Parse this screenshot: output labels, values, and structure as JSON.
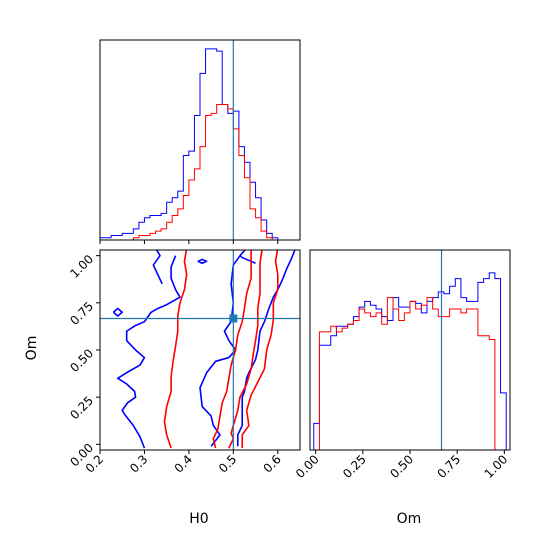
{
  "chart_data": {
    "type": "corner",
    "params": [
      "H0",
      "Om"
    ],
    "truth": {
      "H0": 0.5,
      "Om": 0.667
    },
    "truth_color": "#1f77b4",
    "series": [
      {
        "color": "#0000ff"
      },
      {
        "color": "#ff0000"
      }
    ],
    "axes": {
      "H0": {
        "xlim": [
          0.2,
          0.65
        ],
        "ticks": [
          0.2,
          0.3,
          0.4,
          0.5,
          0.6
        ],
        "tick_labels": [
          "0.2",
          "0.3",
          "0.4",
          "0.5",
          "0.6"
        ],
        "xlabel": "H0"
      },
      "Om": {
        "lim": [
          -0.03,
          1.03
        ],
        "ticks": [
          0.0,
          0.25,
          0.5,
          0.75,
          1.0
        ],
        "tick_labels": [
          "0.00",
          "0.25",
          "0.50",
          "0.75",
          "1.00"
        ],
        "xlabel": "Om",
        "ylabel": "Om"
      }
    },
    "hist_H0": {
      "edges": [
        0.2,
        0.2125,
        0.225,
        0.2375,
        0.25,
        0.2625,
        0.275,
        0.2875,
        0.3,
        0.3125,
        0.325,
        0.3375,
        0.35,
        0.3625,
        0.375,
        0.3875,
        0.4,
        0.4125,
        0.425,
        0.4375,
        0.45,
        0.4625,
        0.475,
        0.4875,
        0.5,
        0.5125,
        0.525,
        0.5375,
        0.55,
        0.5625,
        0.575,
        0.5875,
        0.6
      ],
      "blue": [
        0.01,
        0.01,
        0.02,
        0.02,
        0.03,
        0.03,
        0.05,
        0.08,
        0.1,
        0.11,
        0.11,
        0.12,
        0.17,
        0.19,
        0.22,
        0.38,
        0.4,
        0.56,
        0.75,
        0.86,
        0.86,
        0.85,
        0.61,
        0.57,
        0.58,
        0.42,
        0.35,
        0.26,
        0.19,
        0.09,
        0.03,
        0.01
      ],
      "red": [
        0.0,
        0.0,
        0.0,
        0.0,
        0.0,
        0.0,
        0.01,
        0.02,
        0.02,
        0.03,
        0.04,
        0.05,
        0.08,
        0.11,
        0.14,
        0.2,
        0.27,
        0.32,
        0.42,
        0.56,
        0.57,
        0.61,
        0.61,
        0.59,
        0.5,
        0.38,
        0.28,
        0.14,
        0.1,
        0.04,
        0.01,
        0.0
      ]
    },
    "hist_Om": {
      "edges": [
        -0.01,
        0.02,
        0.05,
        0.08,
        0.11,
        0.14,
        0.17,
        0.2,
        0.23,
        0.26,
        0.29,
        0.32,
        0.35,
        0.38,
        0.41,
        0.44,
        0.47,
        0.5,
        0.53,
        0.56,
        0.59,
        0.62,
        0.65,
        0.68,
        0.71,
        0.74,
        0.77,
        0.8,
        0.83,
        0.86,
        0.89,
        0.92,
        0.95,
        0.98,
        1.01
      ],
      "blue": [
        0.14,
        0.55,
        0.55,
        0.6,
        0.65,
        0.65,
        0.66,
        0.7,
        0.75,
        0.78,
        0.76,
        0.74,
        0.7,
        0.68,
        0.8,
        0.75,
        0.75,
        0.78,
        0.77,
        0.72,
        0.78,
        0.8,
        0.83,
        0.82,
        0.86,
        0.9,
        0.8,
        0.78,
        0.78,
        0.88,
        0.9,
        0.93,
        0.9,
        0.3
      ],
      "red": [
        0.0,
        0.62,
        0.62,
        0.65,
        0.62,
        0.64,
        0.66,
        0.68,
        0.74,
        0.72,
        0.7,
        0.72,
        0.66,
        0.8,
        0.74,
        0.68,
        0.72,
        0.78,
        0.74,
        0.76,
        0.8,
        0.74,
        0.7,
        0.7,
        0.74,
        0.74,
        0.72,
        0.74,
        0.74,
        0.6,
        0.6,
        0.58,
        0.0,
        0.0
      ]
    },
    "contours": [
      {
        "series": 0,
        "points": [
          [
            0.3,
            -0.02
          ],
          [
            0.29,
            0.04
          ],
          [
            0.275,
            0.1
          ],
          [
            0.255,
            0.16
          ],
          [
            0.25,
            0.18
          ],
          [
            0.262,
            0.22
          ],
          [
            0.28,
            0.25
          ],
          [
            0.278,
            0.28
          ],
          [
            0.26,
            0.32
          ],
          [
            0.24,
            0.35
          ],
          [
            0.26,
            0.38
          ],
          [
            0.29,
            0.42
          ],
          [
            0.3,
            0.46
          ],
          [
            0.28,
            0.5
          ],
          [
            0.26,
            0.55
          ],
          [
            0.26,
            0.6
          ],
          [
            0.28,
            0.63
          ],
          [
            0.3,
            0.65
          ],
          [
            0.315,
            0.7
          ],
          [
            0.33,
            0.72
          ],
          [
            0.35,
            0.74
          ],
          [
            0.365,
            0.76
          ],
          [
            0.38,
            0.78
          ],
          [
            0.37,
            0.82
          ],
          [
            0.36,
            0.88
          ],
          [
            0.36,
            0.94
          ],
          [
            0.37,
            1.0
          ]
        ]
      },
      {
        "series": 0,
        "points": [
          [
            0.34,
            0.85
          ],
          [
            0.33,
            0.9
          ],
          [
            0.32,
            0.95
          ],
          [
            0.335,
            1.0
          ],
          [
            0.325,
            1.04
          ]
        ]
      },
      {
        "series": 0,
        "points": [
          [
            0.23,
            0.7
          ],
          [
            0.24,
            0.68
          ],
          [
            0.25,
            0.7
          ],
          [
            0.24,
            0.72
          ],
          [
            0.23,
            0.7
          ]
        ]
      },
      {
        "series": 0,
        "points": [
          [
            0.45,
            -0.01
          ],
          [
            0.47,
            0.05
          ],
          [
            0.455,
            0.1
          ],
          [
            0.45,
            0.15
          ],
          [
            0.43,
            0.2
          ],
          [
            0.425,
            0.3
          ],
          [
            0.44,
            0.38
          ],
          [
            0.46,
            0.44
          ],
          [
            0.49,
            0.46
          ],
          [
            0.505,
            0.5
          ],
          [
            0.49,
            0.55
          ],
          [
            0.48,
            0.6
          ],
          [
            0.495,
            0.65
          ],
          [
            0.5,
            0.75
          ],
          [
            0.495,
            0.85
          ],
          [
            0.5,
            0.95
          ],
          [
            0.515,
            1.0
          ],
          [
            0.53,
            1.04
          ]
        ]
      },
      {
        "series": 0,
        "points": [
          [
            0.51,
            -0.01
          ],
          [
            0.51,
            0.05
          ],
          [
            0.52,
            0.1
          ],
          [
            0.52,
            0.2
          ],
          [
            0.52,
            0.25
          ],
          [
            0.525,
            0.28
          ],
          [
            0.53,
            0.35
          ],
          [
            0.535,
            0.38
          ],
          [
            0.55,
            0.45
          ],
          [
            0.555,
            0.5
          ],
          [
            0.56,
            0.6
          ],
          [
            0.57,
            0.65
          ],
          [
            0.58,
            0.72
          ],
          [
            0.59,
            0.78
          ],
          [
            0.6,
            0.82
          ],
          [
            0.61,
            0.87
          ],
          [
            0.62,
            0.93
          ],
          [
            0.63,
            0.98
          ],
          [
            0.64,
            1.04
          ]
        ]
      },
      {
        "series": 0,
        "points": [
          [
            0.42,
            0.97
          ],
          [
            0.43,
            0.96
          ],
          [
            0.44,
            0.97
          ],
          [
            0.43,
            0.98
          ],
          [
            0.42,
            0.97
          ]
        ]
      },
      {
        "series": 0,
        "points": [
          [
            0.55,
            0.96
          ],
          [
            0.54,
            0.97
          ],
          [
            0.53,
            0.98
          ],
          [
            0.52,
            0.99
          ],
          [
            0.515,
            1.0
          ]
        ]
      },
      {
        "series": 1,
        "points": [
          [
            0.36,
            -0.02
          ],
          [
            0.35,
            0.05
          ],
          [
            0.345,
            0.12
          ],
          [
            0.35,
            0.2
          ],
          [
            0.36,
            0.28
          ],
          [
            0.36,
            0.36
          ],
          [
            0.365,
            0.45
          ],
          [
            0.37,
            0.52
          ],
          [
            0.375,
            0.6
          ],
          [
            0.375,
            0.68
          ],
          [
            0.38,
            0.75
          ],
          [
            0.39,
            0.82
          ],
          [
            0.395,
            0.9
          ],
          [
            0.39,
            0.97
          ],
          [
            0.395,
            1.04
          ]
        ]
      },
      {
        "series": 1,
        "points": [
          [
            0.46,
            -0.02
          ],
          [
            0.455,
            0.03
          ],
          [
            0.465,
            0.08
          ],
          [
            0.47,
            0.15
          ],
          [
            0.475,
            0.22
          ],
          [
            0.485,
            0.28
          ],
          [
            0.49,
            0.35
          ],
          [
            0.495,
            0.42
          ],
          [
            0.505,
            0.5
          ],
          [
            0.51,
            0.58
          ],
          [
            0.52,
            0.65
          ],
          [
            0.525,
            0.72
          ],
          [
            0.53,
            0.8
          ],
          [
            0.54,
            0.88
          ],
          [
            0.54,
            0.95
          ],
          [
            0.54,
            1.04
          ]
        ]
      },
      {
        "series": 1,
        "points": [
          [
            0.49,
            -0.02
          ],
          [
            0.5,
            0.03
          ],
          [
            0.495,
            0.06
          ],
          [
            0.5,
            0.1
          ],
          [
            0.51,
            0.18
          ],
          [
            0.515,
            0.25
          ],
          [
            0.53,
            0.32
          ],
          [
            0.54,
            0.4
          ],
          [
            0.545,
            0.48
          ],
          [
            0.55,
            0.55
          ],
          [
            0.555,
            0.63
          ],
          [
            0.555,
            0.72
          ],
          [
            0.56,
            0.8
          ],
          [
            0.56,
            0.88
          ],
          [
            0.56,
            0.96
          ],
          [
            0.565,
            1.04
          ]
        ]
      },
      {
        "series": 1,
        "points": [
          [
            0.52,
            -0.02
          ],
          [
            0.52,
            0.05
          ],
          [
            0.535,
            0.1
          ],
          [
            0.53,
            0.18
          ],
          [
            0.54,
            0.26
          ],
          [
            0.555,
            0.33
          ],
          [
            0.57,
            0.4
          ],
          [
            0.575,
            0.5
          ],
          [
            0.585,
            0.58
          ],
          [
            0.59,
            0.66
          ],
          [
            0.59,
            0.75
          ],
          [
            0.6,
            0.82
          ],
          [
            0.6,
            0.9
          ],
          [
            0.595,
            0.97
          ],
          [
            0.6,
            1.04
          ]
        ]
      }
    ]
  }
}
